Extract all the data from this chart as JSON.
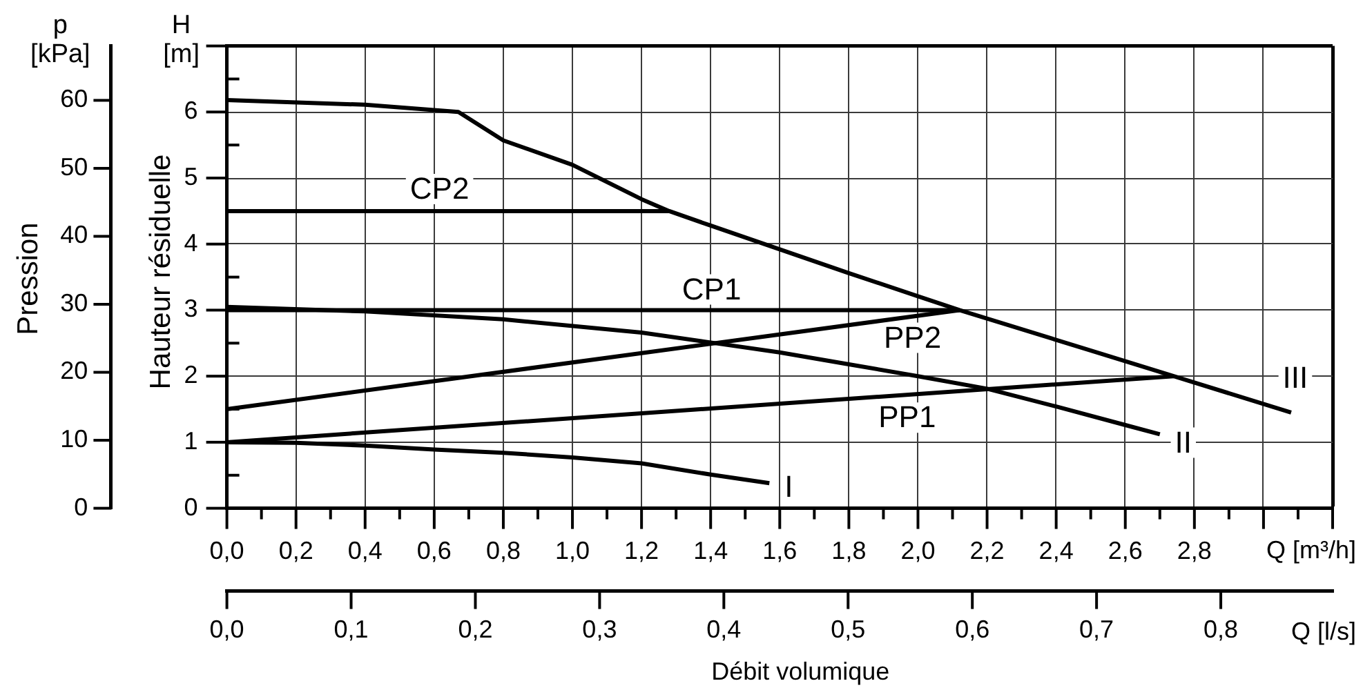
{
  "chart_data": {
    "type": "line",
    "xlabel": "Q [m³/h]",
    "x2label": "Q [l/s]",
    "ylabel": "H [m]",
    "y2label": "p [kPa]",
    "annotations": [
      "Hauteur résiduelle",
      "Pression",
      "Débit volumique"
    ],
    "xlim": [
      0,
      3.2
    ],
    "xticks": [
      {
        "value": 0,
        "label": "0,0"
      },
      {
        "value": 0.1,
        "label": null
      },
      {
        "value": 0.2,
        "label": "0,2"
      },
      {
        "value": 0.3,
        "label": null
      },
      {
        "value": 0.4,
        "label": "0,4"
      },
      {
        "value": 0.5,
        "label": null
      },
      {
        "value": 0.6,
        "label": "0,6"
      },
      {
        "value": 0.7,
        "label": null
      },
      {
        "value": 0.8,
        "label": "0,8"
      },
      {
        "value": 0.9,
        "label": null
      },
      {
        "value": 1.0,
        "label": "1,0"
      },
      {
        "value": 1.1,
        "label": null
      },
      {
        "value": 1.2,
        "label": "1,2"
      },
      {
        "value": 1.3,
        "label": null
      },
      {
        "value": 1.4,
        "label": "1,4"
      },
      {
        "value": 1.5,
        "label": null
      },
      {
        "value": 1.6,
        "label": "1,6"
      },
      {
        "value": 1.7,
        "label": null
      },
      {
        "value": 1.8,
        "label": "1,8"
      },
      {
        "value": 1.9,
        "label": null
      },
      {
        "value": 2.0,
        "label": "2,0"
      },
      {
        "value": 2.1,
        "label": null
      },
      {
        "value": 2.2,
        "label": "2,2"
      },
      {
        "value": 2.3,
        "label": null
      },
      {
        "value": 2.4,
        "label": "2,4"
      },
      {
        "value": 2.5,
        "label": null
      },
      {
        "value": 2.6,
        "label": "2,6"
      },
      {
        "value": 2.7,
        "label": null
      },
      {
        "value": 2.8,
        "label": "2,8"
      },
      {
        "value": 2.9,
        "label": null
      },
      {
        "value": 3.0,
        "label": null
      },
      {
        "value": 3.1,
        "label": null
      },
      {
        "value": 3.2,
        "label": null
      }
    ],
    "ylim": [
      0,
      7
    ],
    "yticks": [
      0,
      {
        "value": 0.5,
        "label": null
      },
      1,
      {
        "value": 1.5,
        "label": null
      },
      2,
      {
        "value": 2.5,
        "label": null
      },
      3,
      {
        "value": 3.5,
        "label": null
      },
      4,
      {
        "value": 4.5,
        "label": null
      },
      5,
      {
        "value": 5.5,
        "label": null
      },
      6,
      {
        "value": 6.5,
        "label": null
      },
      {
        "value": 7,
        "label": null
      }
    ],
    "y2lim": [
      0,
      68
    ],
    "y2ticks": [
      0,
      10,
      20,
      30,
      40,
      50,
      60
    ],
    "x2lim": [
      0,
      0.89
    ],
    "x2ticks": [
      {
        "value": 0,
        "label": "0,0"
      },
      {
        "value": 0.1,
        "label": "0,1"
      },
      {
        "value": 0.2,
        "label": "0,2"
      },
      {
        "value": 0.3,
        "label": "0,3"
      },
      {
        "value": 0.4,
        "label": "0,4"
      },
      {
        "value": 0.5,
        "label": "0,5"
      },
      {
        "value": 0.6,
        "label": "0,6"
      },
      {
        "value": 0.7,
        "label": "0,7"
      },
      {
        "value": 0.8,
        "label": "0,8"
      }
    ],
    "grid": true,
    "legend": false,
    "marker": "none",
    "series": [
      {
        "name": "I",
        "color": "#000000",
        "x": [
          0,
          0.2,
          0.4,
          0.6,
          0.8,
          1.0,
          1.2,
          1.4,
          1.57
        ],
        "values": [
          1.0,
          0.99,
          0.95,
          0.89,
          0.84,
          0.77,
          0.68,
          0.51,
          0.38
        ]
      },
      {
        "name": "II",
        "color": "#000000",
        "x": [
          0,
          0.4,
          0.8,
          1.2,
          1.4,
          1.6,
          1.8,
          2.0,
          2.2,
          2.4,
          2.6,
          2.7
        ],
        "values": [
          3.05,
          2.98,
          2.86,
          2.66,
          2.51,
          2.36,
          2.18,
          2.0,
          1.81,
          1.54,
          1.26,
          1.12
        ]
      },
      {
        "name": "III",
        "color": "#000000",
        "x": [
          0,
          0.4,
          0.67,
          0.8,
          1.0,
          1.2,
          1.28,
          1.4,
          1.6,
          1.8,
          2.0,
          2.12,
          2.4,
          2.74,
          3.08
        ],
        "values": [
          6.18,
          6.11,
          6.0,
          5.57,
          5.2,
          4.68,
          4.5,
          4.28,
          3.92,
          3.56,
          3.21,
          3.0,
          2.55,
          2.0,
          1.45
        ]
      },
      {
        "name": "CP1",
        "color": "#000000",
        "x": [
          0,
          2.12
        ],
        "values": [
          3.0,
          3.0
        ]
      },
      {
        "name": "CP2",
        "color": "#000000",
        "x": [
          0,
          1.28
        ],
        "values": [
          4.5,
          4.5
        ]
      },
      {
        "name": "PP1",
        "color": "#000000",
        "x": [
          0,
          2.74
        ],
        "values": [
          1.0,
          2.0
        ]
      },
      {
        "name": "PP2",
        "color": "#000000",
        "x": [
          0,
          2.12
        ],
        "values": [
          1.5,
          3.0
        ]
      }
    ]
  }
}
